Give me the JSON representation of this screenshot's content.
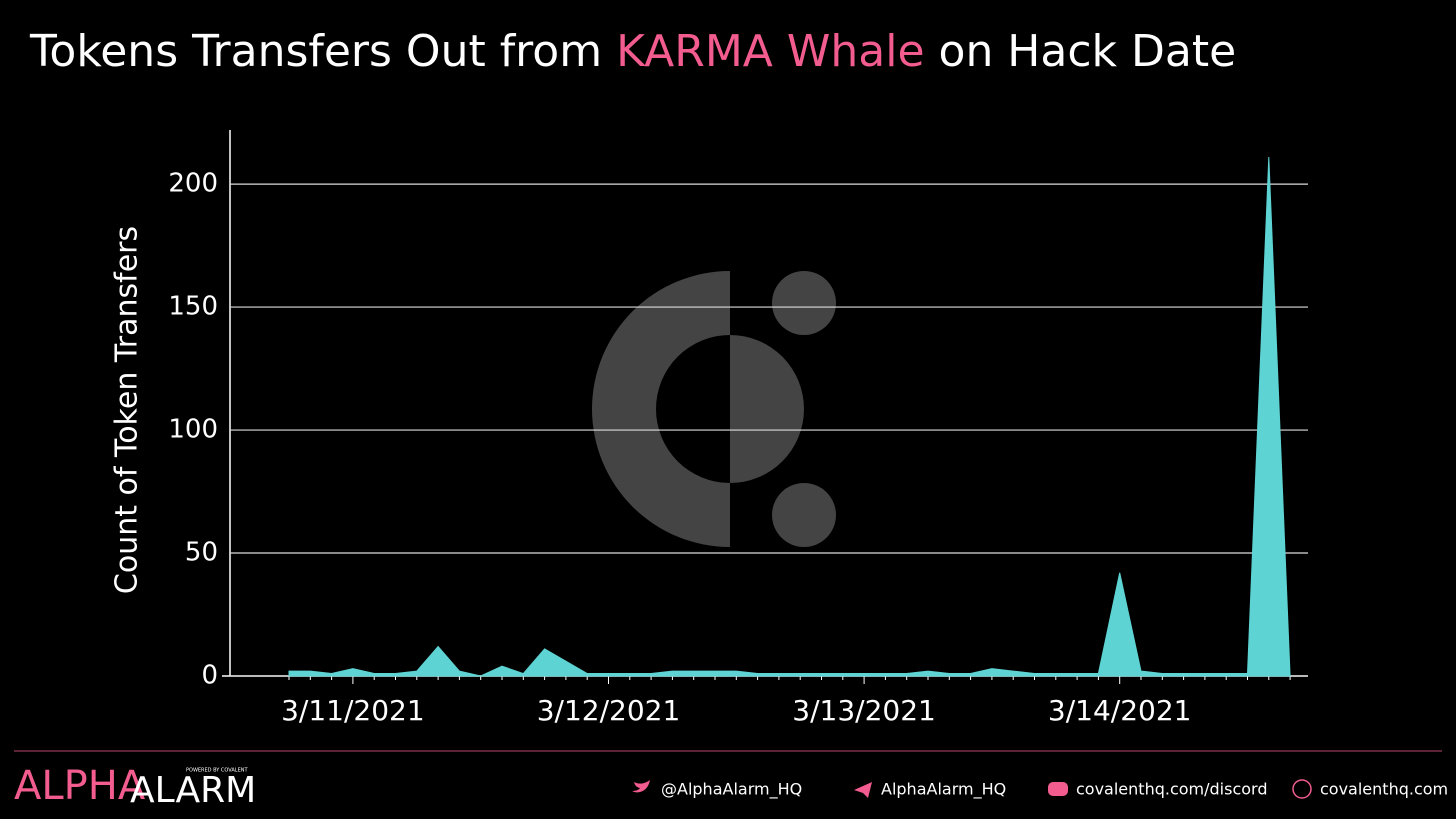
{
  "chart_data": {
    "type": "area",
    "title_parts": [
      "Tokens Transfers Out from ",
      "KARMA Whale",
      " on Hack Date"
    ],
    "y_label": "Count of Token Transfers",
    "categories": [
      null,
      null,
      null,
      "3/11/2021",
      null,
      null,
      null,
      null,
      null,
      null,
      null,
      null,
      null,
      null,
      null,
      "3/12/2021",
      null,
      null,
      null,
      null,
      null,
      null,
      null,
      null,
      null,
      null,
      null,
      "3/13/2021",
      null,
      null,
      null,
      null,
      null,
      null,
      null,
      null,
      null,
      null,
      null,
      "3/14/2021",
      null,
      null,
      null,
      null,
      null,
      null,
      null,
      null
    ],
    "values": [
      2,
      2,
      1,
      3,
      1,
      1,
      2,
      12,
      2,
      0,
      4,
      1,
      11,
      6,
      1,
      1,
      1,
      1,
      2,
      2,
      2,
      2,
      1,
      1,
      1,
      1,
      1,
      1,
      1,
      1,
      2,
      1,
      1,
      3,
      2,
      1,
      1,
      1,
      1,
      42,
      2,
      1,
      1,
      1,
      1,
      1,
      211,
      0
    ],
    "color": "#5ed3d3",
    "ylim": [
      0,
      222
    ],
    "yticks": [
      0,
      50,
      100,
      150,
      200
    ],
    "grid": true
  },
  "footer": {
    "brand_1": "ALPHA",
    "brand_2": "ALARM",
    "powered": "POWERED BY COVALENT",
    "links": [
      "@AlphaAlarm_HQ",
      "AlphaAlarm_HQ",
      "covalenthq.com/discord",
      "covalenthq.com"
    ]
  }
}
